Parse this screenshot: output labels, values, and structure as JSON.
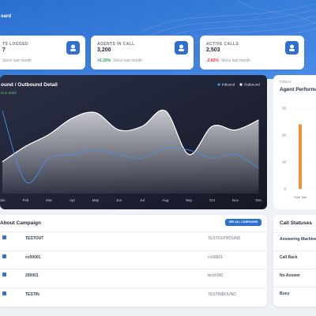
{
  "header": {
    "title": "oard"
  },
  "stats": [
    {
      "label": "TS LOGGED",
      "value": "7",
      "note": "Since last month"
    },
    {
      "label": "AGENTS IN CALL",
      "value": "3,200",
      "change": "+0.20%",
      "note": "Since last month"
    },
    {
      "label": "ACTIVE CALLS",
      "value": "2,503",
      "change": "-2.82%",
      "note": "Since last month"
    }
  ],
  "inbound_outbound_chart": {
    "type": "area",
    "title": "ound / Outbound Detail",
    "subtitle": "rs in 2024",
    "categories": [
      "Jan",
      "Feb",
      "Mar",
      "Apr",
      "May",
      "Jun",
      "Jul",
      "Aug",
      "Sep",
      "Oct",
      "Nov",
      "Dec"
    ],
    "ylim": [
      0,
      100
    ],
    "series": [
      {
        "name": "Inbound",
        "color": "#4a90e2",
        "values": [
          91,
          13,
          39,
          43,
          48,
          43,
          39,
          50,
          48,
          39,
          43,
          28
        ]
      },
      {
        "name": "Outbound",
        "color": "#ffffff",
        "values": [
          35,
          52,
          65,
          83,
          89,
          70,
          74,
          91,
          43,
          74,
          70,
          81
        ]
      }
    ]
  },
  "agent_performance": {
    "type": "bar",
    "label": "TODAY",
    "title": "Agent Performa",
    "categories": [
      "Total Talk"
    ],
    "values": [
      24
    ],
    "color": "#f0913a",
    "ylim": [
      0,
      30
    ],
    "yticks": [
      0,
      10,
      20,
      30
    ]
  },
  "campaigns": {
    "title": "About Campaign",
    "button": "SEE ALL CAMPAIGNS",
    "rows": [
      [
        "TESTOUT",
        "TESTOUTBOUND"
      ],
      [
        "cc00001",
        "cc00001"
      ],
      [
        "200001",
        "test1000"
      ],
      [
        "TESTIN",
        "TESTINBOUND"
      ]
    ]
  },
  "call_statuses": {
    "title": "Call Statuses",
    "items": [
      "Answering Machine",
      "Call Back",
      "No Answer",
      "Busy"
    ]
  }
}
